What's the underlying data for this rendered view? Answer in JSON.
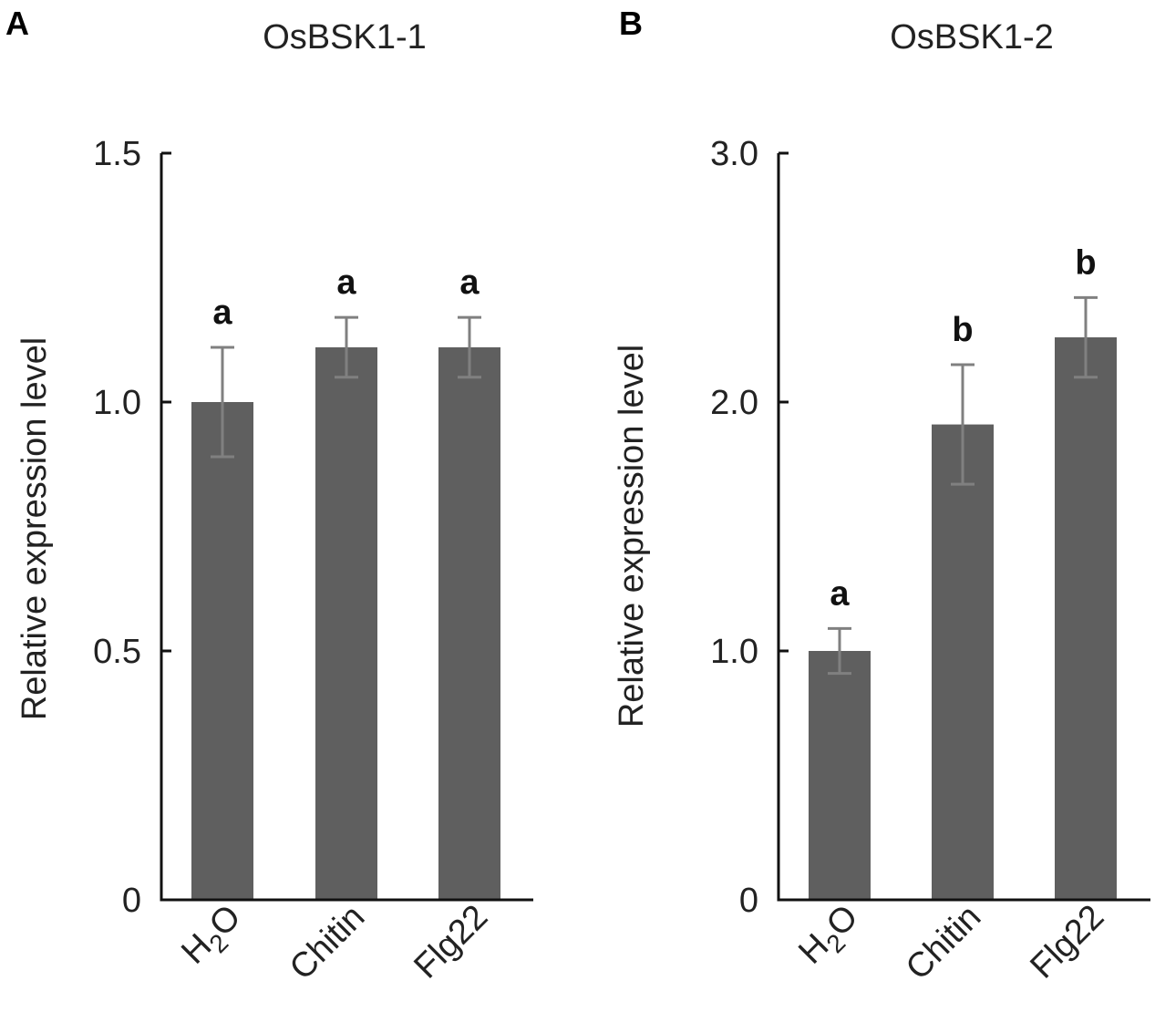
{
  "chart_data": [
    {
      "panel": "A",
      "type": "bar",
      "title": "OsBSK1-1",
      "xlabel": "",
      "ylabel": "Relative expression level",
      "ylim": [
        0,
        1.5
      ],
      "yticks": [
        0,
        0.5,
        1.0,
        1.5
      ],
      "ytick_labels": [
        "0",
        "0.5",
        "1.0",
        "1.5"
      ],
      "categories": [
        {
          "main": "H",
          "sub": "2",
          "tail": "O"
        },
        {
          "main": "Chitin",
          "sub": "",
          "tail": ""
        },
        {
          "main": "Flg22",
          "sub": "",
          "tail": ""
        }
      ],
      "values": [
        1.0,
        1.11,
        1.11
      ],
      "errors": [
        0.11,
        0.06,
        0.06
      ],
      "significance": [
        "a",
        "a",
        "a"
      ],
      "bar_color": "#5f5f5f",
      "error_color": "#808080"
    },
    {
      "panel": "B",
      "type": "bar",
      "title": "OsBSK1-2",
      "xlabel": "",
      "ylabel": "Relative expression level",
      "ylim": [
        0,
        3.0
      ],
      "yticks": [
        0,
        1.0,
        2.0,
        3.0
      ],
      "ytick_labels": [
        "0",
        "1.0",
        "2.0",
        "3.0"
      ],
      "categories": [
        {
          "main": "H",
          "sub": "2",
          "tail": "O"
        },
        {
          "main": "Chitin",
          "sub": "",
          "tail": ""
        },
        {
          "main": "Flg22",
          "sub": "",
          "tail": ""
        }
      ],
      "values": [
        1.0,
        1.91,
        2.26
      ],
      "errors": [
        0.09,
        0.24,
        0.16
      ],
      "significance": [
        "a",
        "b",
        "b"
      ],
      "bar_color": "#5f5f5f",
      "error_color": "#808080"
    }
  ]
}
